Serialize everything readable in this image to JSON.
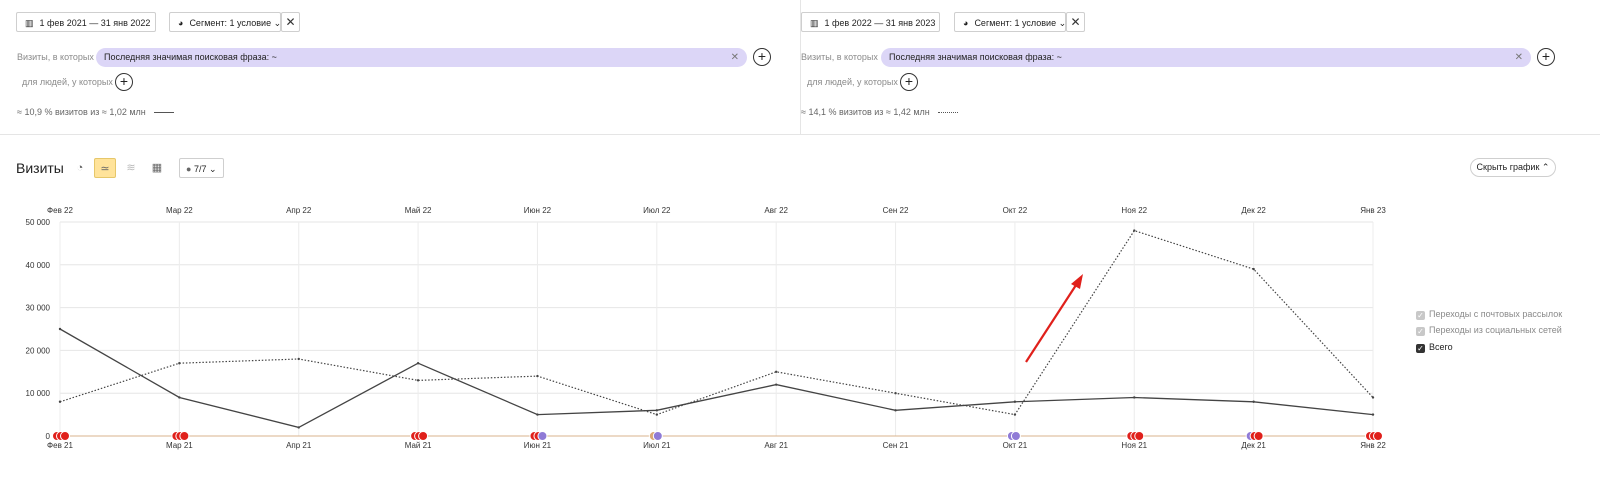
{
  "panels": [
    {
      "date_range": "1 фев 2021 — 31 янв 2022",
      "segment_label": "Сегмент: 1 условие",
      "visits_label": "Визиты, в которых",
      "filter_text": "Последняя значимая поисковая фраза: ~",
      "people_label": "для людей, у которых",
      "summary": "≈ 10,9 % визитов из ≈ 1,02 млн"
    },
    {
      "date_range": "1 фев 2022 — 31 янв 2023",
      "segment_label": "Сегмент: 1 условие",
      "visits_label": "Визиты, в которых",
      "filter_text": "Последняя значимая поисковая фраза: ~",
      "people_label": "для людей, у которых",
      "summary": "≈ 14,1 % визитов из ≈ 1,42 млн"
    }
  ],
  "toolbar": {
    "title": "Визиты",
    "comments_label": "7/7",
    "hide_chart_label": "Скрыть график"
  },
  "legend": [
    {
      "label": "Переходы с почтовых рассылок",
      "checked": false
    },
    {
      "label": "Переходы из социальных сетей",
      "checked": false
    },
    {
      "label": "Всего",
      "checked": true
    }
  ],
  "icons": {
    "calendar": "calendar-icon",
    "segment": "pie-icon",
    "close": "close-icon",
    "plus": "plus-icon",
    "annotation": "comment-icon"
  },
  "colors": {
    "filter_bg": "#dcd6f7",
    "active_tool": "#ffe39a",
    "series_line": "#444444",
    "axis_baseline": "#d9b38c",
    "arrow": "#e0201b"
  },
  "chart_data": {
    "type": "line",
    "top_categories": [
      "Фев 22",
      "Мар 22",
      "Апр 22",
      "Май 22",
      "Июн 22",
      "Июл 22",
      "Авг 22",
      "Сен 22",
      "Окт 22",
      "Ноя 22",
      "Дек 22",
      "Янв 23"
    ],
    "bottom_categories": [
      "Фев 21",
      "Мар 21",
      "Апр 21",
      "Май 21",
      "Июн 21",
      "Июл 21",
      "Авг 21",
      "Сен 21",
      "Окт 21",
      "Ноя 21",
      "Дек 21",
      "Янв 22"
    ],
    "y_ticks": [
      "0",
      "10 000",
      "20 000",
      "30 000",
      "40 000",
      "50 000"
    ],
    "ylim": [
      0,
      50000
    ],
    "series": [
      {
        "period": "1 фев 2021 — 31 янв 2022",
        "style": "solid",
        "values": [
          25000,
          9000,
          2000,
          17000,
          5000,
          6000,
          12000,
          6000,
          8000,
          9000,
          8000,
          5000
        ]
      },
      {
        "period": "1 фев 2022 — 31 янв 2023",
        "style": "dotted",
        "values": [
          8000,
          17000,
          18000,
          13000,
          14000,
          5000,
          15000,
          10000,
          5000,
          48000,
          39000,
          9000
        ]
      }
    ],
    "grid": true,
    "legend_position": "right",
    "markers": [
      {
        "colors": [
          "#e0201b",
          "#e0201b",
          "#e0201b"
        ]
      },
      {
        "colors": [
          "#e0201b",
          "#e0201b",
          "#e0201b"
        ]
      },
      {
        "colors": []
      },
      {
        "colors": [
          "#e0201b",
          "#e0201b",
          "#e0201b"
        ]
      },
      {
        "colors": [
          "#e0201b",
          "#e0201b",
          "#8f7ad6"
        ]
      },
      {
        "colors": [
          "#d9a877",
          "#8f7ad6"
        ]
      },
      {
        "colors": []
      },
      {
        "colors": []
      },
      {
        "colors": [
          "#8f7ad6",
          "#8f7ad6"
        ]
      },
      {
        "colors": [
          "#e0201b",
          "#e0201b",
          "#e0201b"
        ]
      },
      {
        "colors": [
          "#8f7ad6",
          "#e0201b",
          "#e0201b"
        ]
      },
      {
        "colors": [
          "#e0201b",
          "#e0201b",
          "#e0201b"
        ]
      }
    ]
  }
}
